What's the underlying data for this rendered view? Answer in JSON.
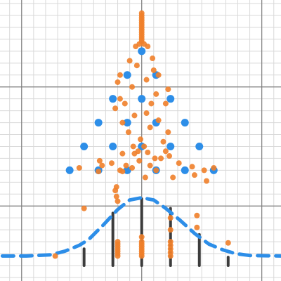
{
  "chart_data": {
    "type": "scatter",
    "title": "",
    "xlabel": "",
    "ylabel": "",
    "xlim": [
      -5.9,
      5.8
    ],
    "ylim": [
      -0.65,
      11.15
    ],
    "grid": true,
    "axes": {
      "x_axis_at_y": 2.5,
      "y_axis_at_x": 0
    },
    "colors": {
      "grid_minor": "#d9d9d9",
      "grid_major": "#7f7f7f",
      "blue_points": "#2d8ee8",
      "orange_points": "#f07f2a",
      "stems": "#3c3c3c",
      "normal_curve": "#2d8ee8"
    },
    "series": [
      {
        "type": "scatter",
        "color": "#2d8ee8",
        "points": [
          [
            0,
            9
          ],
          [
            -0.6,
            8
          ],
          [
            0.6,
            8
          ],
          [
            -1.2,
            7
          ],
          [
            0,
            7
          ],
          [
            1.2,
            7
          ],
          [
            -1.8,
            6
          ],
          [
            -0.6,
            6
          ],
          [
            0.6,
            6
          ],
          [
            1.8,
            6
          ],
          [
            -2.4,
            5
          ],
          [
            -1.2,
            5
          ],
          [
            0,
            5
          ],
          [
            1.2,
            5
          ],
          [
            2.4,
            5
          ],
          [
            -3.0,
            4
          ],
          [
            -1.8,
            4
          ],
          [
            -0.6,
            4
          ],
          [
            0.6,
            4
          ],
          [
            1.8,
            4
          ],
          [
            3.0,
            4
          ]
        ]
      },
      {
        "type": "scatter",
        "color": "#f07f2a",
        "points": [
          [
            0,
            10.6
          ],
          [
            0,
            10.5
          ],
          [
            0,
            10.4
          ],
          [
            0,
            10.3
          ],
          [
            0,
            10.2
          ],
          [
            0,
            10.1
          ],
          [
            0,
            10.0
          ],
          [
            0,
            9.9
          ],
          [
            0,
            9.8
          ],
          [
            0,
            9.7
          ],
          [
            0,
            9.6
          ],
          [
            0,
            9.5
          ],
          [
            0,
            9.4
          ],
          [
            -0.25,
            9.2
          ],
          [
            0.25,
            9.2
          ],
          [
            -0.1,
            9.3
          ],
          [
            0.1,
            9.3
          ],
          [
            -0.5,
            8.6
          ],
          [
            0.45,
            8.7
          ],
          [
            -0.2,
            8.4
          ],
          [
            0.5,
            8.2
          ],
          [
            -0.9,
            8.0
          ],
          [
            0.7,
            8.0
          ],
          [
            -1.0,
            7.7
          ],
          [
            0.2,
            7.8
          ],
          [
            -0.4,
            7.5
          ],
          [
            1.1,
            7.4
          ],
          [
            0.6,
            7.2
          ],
          [
            -0.9,
            7.0
          ],
          [
            -0.7,
            6.8
          ],
          [
            0.4,
            6.8
          ],
          [
            -1.1,
            6.6
          ],
          [
            1.0,
            6.8
          ],
          [
            0.2,
            6.4
          ],
          [
            -0.3,
            6.3
          ],
          [
            0.7,
            6.1
          ],
          [
            -0.8,
            6.0
          ],
          [
            0.35,
            5.8
          ],
          [
            -0.55,
            5.6
          ],
          [
            1.1,
            5.6
          ],
          [
            0.9,
            5.2
          ],
          [
            -0.05,
            5.3
          ],
          [
            -0.35,
            5.0
          ],
          [
            0.1,
            5.0
          ],
          [
            1.0,
            4.8
          ],
          [
            1.15,
            4.6
          ],
          [
            0.55,
            4.5
          ],
          [
            -0.8,
            4.7
          ],
          [
            -0.3,
            4.7
          ],
          [
            0.25,
            4.75
          ],
          [
            -0.15,
            4.8
          ],
          [
            0.8,
            4.5
          ],
          [
            -1.25,
            4.3
          ],
          [
            -0.1,
            4.4
          ],
          [
            0.35,
            4.2
          ],
          [
            -0.65,
            4.2
          ],
          [
            1.55,
            4.3
          ],
          [
            -1.75,
            4.4
          ],
          [
            -1.65,
            4.2
          ],
          [
            -0.9,
            4.0
          ],
          [
            -0.4,
            4.1
          ],
          [
            0.6,
            4.0
          ],
          [
            -1.8,
            3.95
          ],
          [
            -2.6,
            4.1
          ],
          [
            -0.8,
            3.95
          ],
          [
            2.1,
            4.15
          ],
          [
            -1.05,
            3.3
          ],
          [
            0.15,
            3.7
          ],
          [
            2.2,
            3.8
          ],
          [
            2.6,
            4.0
          ],
          [
            1.3,
            3.7
          ],
          [
            -1.05,
            2.9
          ],
          [
            -1.1,
            3.15
          ],
          [
            2.7,
            3.55
          ],
          [
            3.0,
            4.1
          ],
          [
            -2.4,
            2.4
          ],
          [
            2.3,
            2.1
          ],
          [
            2.3,
            1.6
          ],
          [
            -1.0,
            2.7
          ],
          [
            -1.0,
            1.0
          ],
          [
            -1.0,
            0.9
          ],
          [
            -1.0,
            0.8
          ],
          [
            -1.0,
            0.7
          ],
          [
            -1.0,
            0.6
          ],
          [
            -1.0,
            0.5
          ],
          [
            -1.0,
            0.4
          ],
          [
            1.2,
            2.0
          ],
          [
            1.2,
            1.5
          ],
          [
            0,
            1.2
          ],
          [
            0,
            1.0
          ],
          [
            0,
            0.9
          ],
          [
            0,
            0.8
          ],
          [
            0,
            0.7
          ],
          [
            0,
            0.6
          ],
          [
            0,
            0.5
          ],
          [
            0,
            0.4
          ],
          [
            1.2,
            0.4
          ],
          [
            1.2,
            0.55
          ],
          [
            1.2,
            0.7
          ],
          [
            1.2,
            0.85
          ],
          [
            1.2,
            1.0
          ],
          [
            3.6,
            0.95
          ],
          [
            -3.6,
            0.4
          ]
        ]
      },
      {
        "type": "stems",
        "color": "#3c3c3c",
        "points": [
          [
            -2.4,
            0.7
          ],
          [
            -1.2,
            2.2
          ],
          [
            0,
            2.8
          ],
          [
            1.2,
            2.4
          ],
          [
            2.4,
            1.3
          ],
          [
            3.6,
            0.35
          ]
        ]
      },
      {
        "type": "line",
        "style": "dashed",
        "color": "#2d8ee8",
        "points": [
          [
            -5.8,
            0.4
          ],
          [
            -4.8,
            0.4
          ],
          [
            -3.8,
            0.45
          ],
          [
            -3.2,
            0.6
          ],
          [
            -2.6,
            0.85
          ],
          [
            -2.2,
            1.1
          ],
          [
            -1.6,
            1.7
          ],
          [
            -1.0,
            2.35
          ],
          [
            -0.5,
            2.75
          ],
          [
            0,
            2.85
          ],
          [
            0.5,
            2.75
          ],
          [
            1.0,
            2.4
          ],
          [
            1.6,
            1.9
          ],
          [
            2.2,
            1.35
          ],
          [
            2.8,
            0.9
          ],
          [
            3.4,
            0.65
          ],
          [
            3.9,
            0.5
          ],
          [
            4.5,
            0.42
          ],
          [
            5.8,
            0.4
          ]
        ]
      }
    ]
  }
}
